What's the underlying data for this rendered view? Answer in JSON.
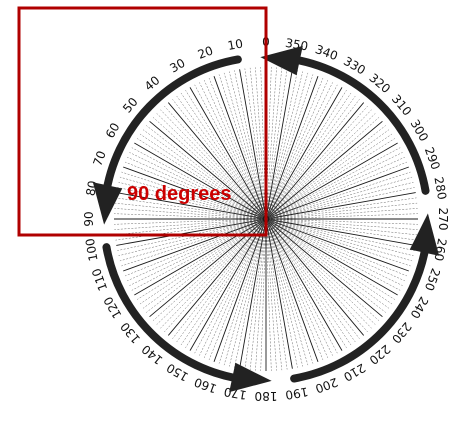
{
  "protractor": {
    "start_degree": 0,
    "end_degree": 360,
    "label_step": 10,
    "line_step": 2
  },
  "highlight": {
    "label": "90 degrees",
    "color": "#cc0000",
    "box_color": "#b00000"
  },
  "arrows": {
    "color": "#222222",
    "direction": "counterclockwise",
    "heads_at_degrees": [
      0,
      90,
      180,
      270
    ]
  }
}
